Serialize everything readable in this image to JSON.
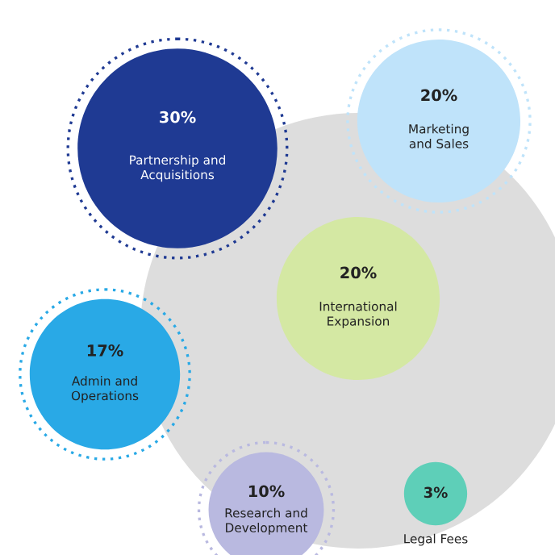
{
  "chart_data": {
    "type": "other",
    "categories": [
      "Partnership and\nAcquisitions",
      "Marketing\nand Sales",
      "International\nExpansion",
      "Admin and\nOperations",
      "Research and\nDevelopment",
      "Legal Fees"
    ],
    "values": [
      30,
      20,
      20,
      17,
      10,
      3
    ],
    "value_labels": [
      "30%",
      "20%",
      "20%",
      "17%",
      "10%",
      "3%"
    ],
    "colors": [
      "#1f3a93",
      "#bfe3fa",
      "#d4e8a3",
      "#29a9e6",
      "#b9b9e0",
      "#5ecfb8"
    ]
  }
}
